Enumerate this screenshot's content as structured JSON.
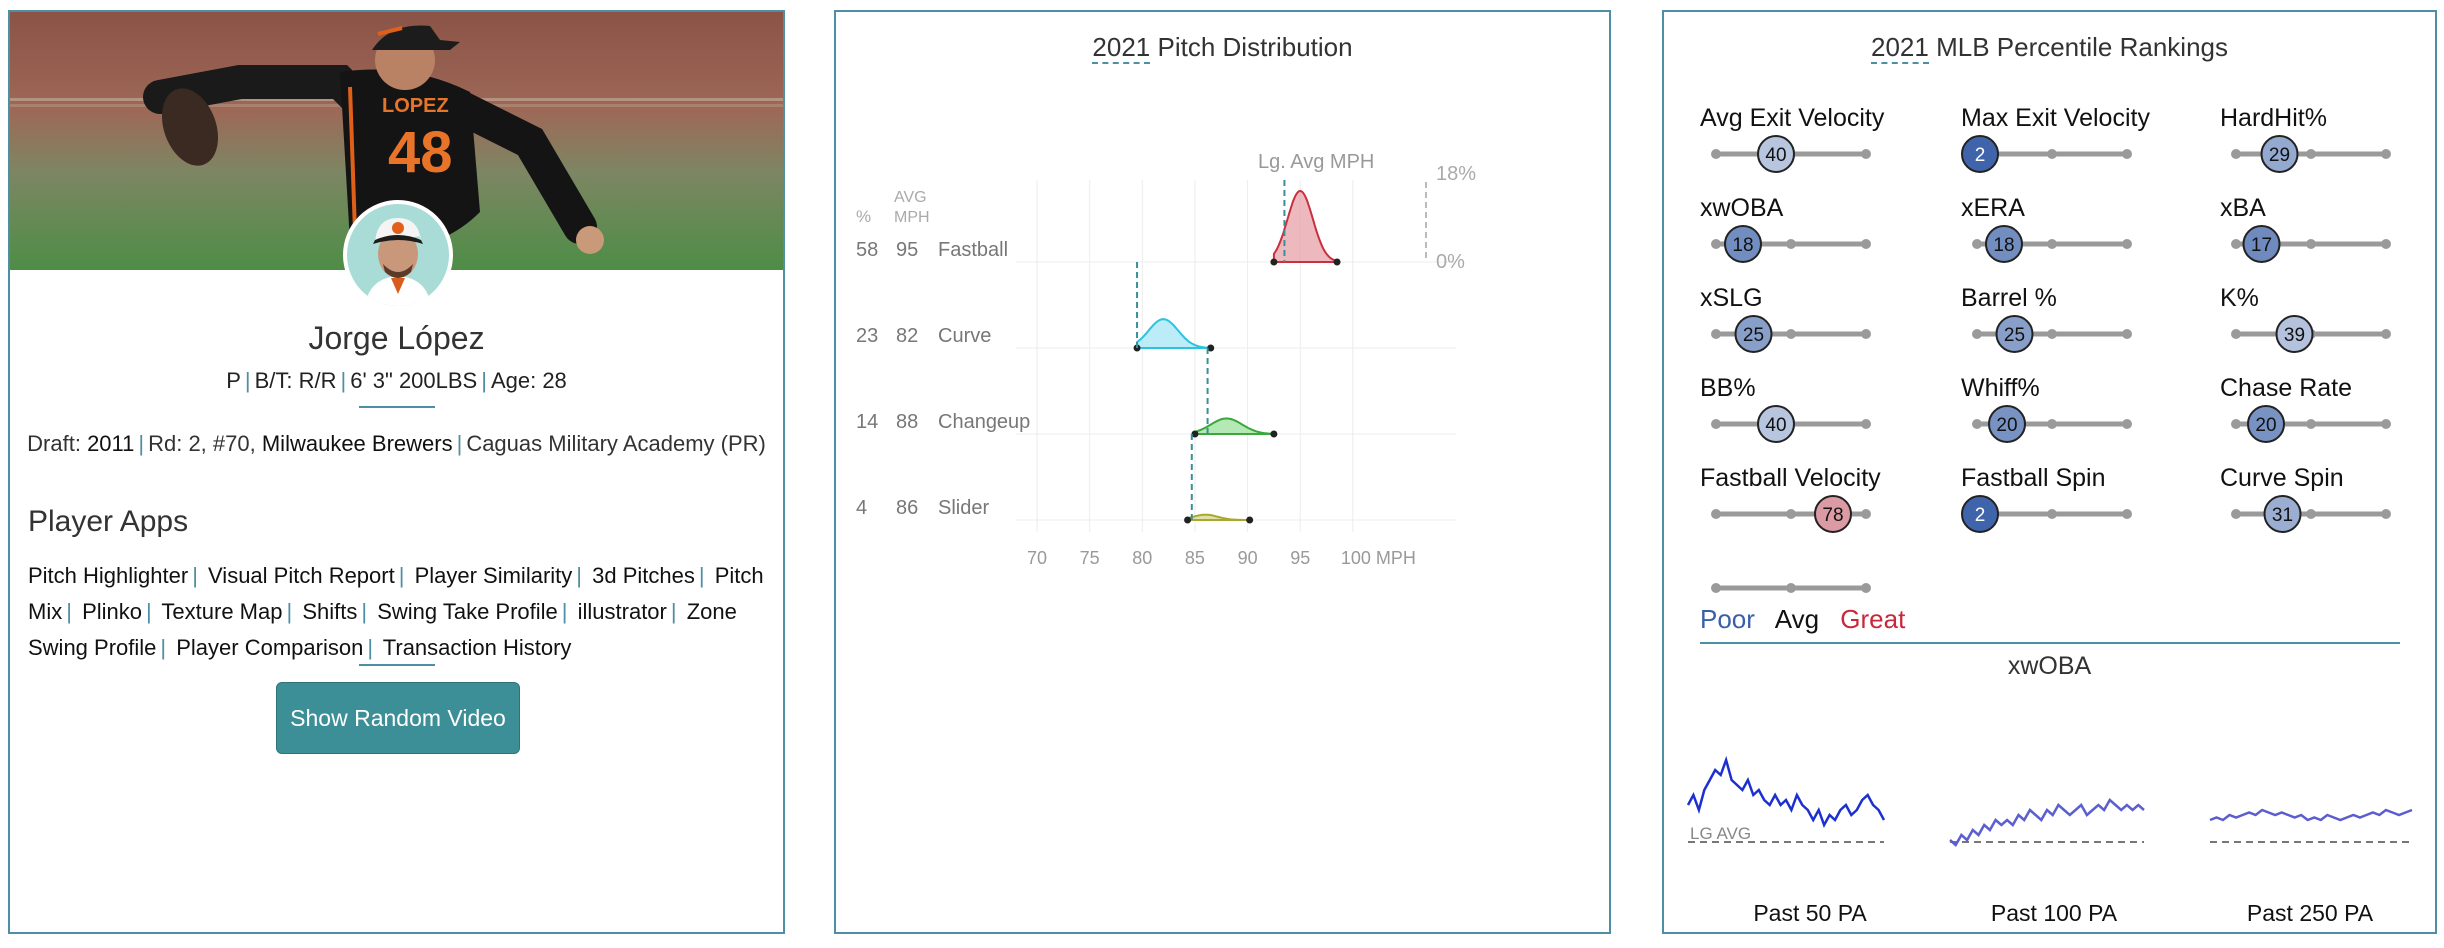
{
  "player": {
    "name": "Jorge López",
    "position": "P",
    "bats_throws": "B/T: R/R",
    "size": "6' 3\" 200LBS",
    "age": "Age: 28",
    "jersey_name": "LOPEZ",
    "jersey_number": "48",
    "draft_label": "Draft:",
    "draft_year": "2011",
    "draft_round": "Rd: 2, #70,",
    "draft_team": "Milwaukee Brewers",
    "school": "Caguas Military Academy (PR)",
    "apps_title": "Player Apps",
    "apps": [
      "Pitch Highlighter",
      "Visual Pitch Report",
      "Player Similarity",
      "3d Pitches",
      "Pitch Mix",
      "Plinko",
      "Texture Map",
      "Shifts",
      "Swing Take Profile",
      "illustrator",
      "Zone Swing Profile",
      "Player Comparison",
      "Transaction History"
    ],
    "video_button": "Show Random Video"
  },
  "distribution": {
    "year": "2021",
    "title_rest": "Pitch Distribution",
    "col_pct": "%",
    "col_avg": "AVG",
    "col_mph": "MPH",
    "lg_avg_label": "Lg. Avg MPH",
    "pct_max": "18%",
    "pct_min": "0%",
    "x_ticks": [
      "70",
      "75",
      "80",
      "85",
      "90",
      "95",
      "100 MPH"
    ]
  },
  "chart_data": {
    "type": "area",
    "x_range": [
      68,
      106
    ],
    "x_unit": "MPH",
    "y_range": [
      0,
      18
    ],
    "pitches": [
      {
        "name": "Fastball",
        "pct": 58,
        "avg": 95,
        "lg_avg": 93.5,
        "min": 92.5,
        "max": 98.5,
        "peak": 16,
        "color": "#e8a0aa",
        "stroke": "#c8303e"
      },
      {
        "name": "Curve",
        "pct": 23,
        "avg": 82,
        "lg_avg": 79.5,
        "min": 79.5,
        "max": 86.5,
        "peak": 6.5,
        "color": "#a4e6f4",
        "stroke": "#2cc3e0"
      },
      {
        "name": "Changeup",
        "pct": 14,
        "avg": 88,
        "lg_avg": 86.2,
        "min": 85,
        "max": 92.5,
        "peak": 3.5,
        "color": "#9be09b",
        "stroke": "#3aa83a"
      },
      {
        "name": "Slider",
        "pct": 4,
        "avg": 86,
        "lg_avg": 84.7,
        "min": 84.3,
        "max": 90.2,
        "peak": 1.2,
        "color": "#d6d68a",
        "stroke": "#a8a830"
      }
    ]
  },
  "percentile": {
    "year": "2021",
    "title_rest": "MLB Percentile Rankings",
    "metrics": [
      {
        "label": "Avg Exit Velocity",
        "value": "40",
        "pct": 40
      },
      {
        "label": "Max Exit Velocity",
        "value": "2",
        "pct": 2
      },
      {
        "label": "HardHit%",
        "value": "29",
        "pct": 29
      },
      {
        "label": "xwOBA",
        "value": "18",
        "pct": 18
      },
      {
        "label": "xERA",
        "value": "18",
        "pct": 18
      },
      {
        "label": "xBA",
        "value": "17",
        "pct": 17
      },
      {
        "label": "xSLG",
        "value": "25",
        "pct": 25
      },
      {
        "label": "Barrel %",
        "value": "25",
        "pct": 25
      },
      {
        "label": "K%",
        "value": "39",
        "pct": 39
      },
      {
        "label": "BB%",
        "value": "40",
        "pct": 40
      },
      {
        "label": "Whiff%",
        "value": "20",
        "pct": 20
      },
      {
        "label": "Chase Rate",
        "value": "20",
        "pct": 20
      },
      {
        "label": "Fastball Velocity",
        "value": "78",
        "pct": 78
      },
      {
        "label": "Fastball Spin",
        "value": "2",
        "pct": 2
      },
      {
        "label": "Curve Spin",
        "value": "31",
        "pct": 31
      }
    ],
    "legend": {
      "poor": "Poor",
      "avg": "Avg",
      "great": "Great"
    },
    "colors": {
      "poor": "#3a5fa8",
      "great": "#c8283a"
    },
    "sub_title": "xwOBA",
    "lg_avg": "LG AVG",
    "spark_labels": [
      "Past 50 PA",
      "Past 100 PA",
      "Past 250 PA"
    ]
  },
  "spark_data": [
    [
      0.31,
      0.33,
      0.3,
      0.34,
      0.36,
      0.38,
      0.37,
      0.4,
      0.36,
      0.35,
      0.34,
      0.36,
      0.33,
      0.34,
      0.32,
      0.31,
      0.33,
      0.31,
      0.32,
      0.3,
      0.33,
      0.31,
      0.3,
      0.28,
      0.3,
      0.27,
      0.29,
      0.28,
      0.3,
      0.31,
      0.29,
      0.3,
      0.32,
      0.33,
      0.31,
      0.3,
      0.28
    ],
    [
      0.24,
      0.23,
      0.25,
      0.24,
      0.26,
      0.25,
      0.27,
      0.26,
      0.28,
      0.27,
      0.28,
      0.27,
      0.29,
      0.28,
      0.3,
      0.29,
      0.28,
      0.3,
      0.29,
      0.31,
      0.3,
      0.29,
      0.3,
      0.31,
      0.29,
      0.3,
      0.31,
      0.3,
      0.32,
      0.31,
      0.3,
      0.31,
      0.3,
      0.31,
      0.3
    ],
    [
      0.28,
      0.285,
      0.28,
      0.29,
      0.285,
      0.29,
      0.295,
      0.29,
      0.3,
      0.295,
      0.29,
      0.295,
      0.29,
      0.285,
      0.29,
      0.28,
      0.285,
      0.28,
      0.29,
      0.285,
      0.28,
      0.285,
      0.29,
      0.285,
      0.29,
      0.295,
      0.29,
      0.3,
      0.295,
      0.29,
      0.295,
      0.3
    ]
  ]
}
